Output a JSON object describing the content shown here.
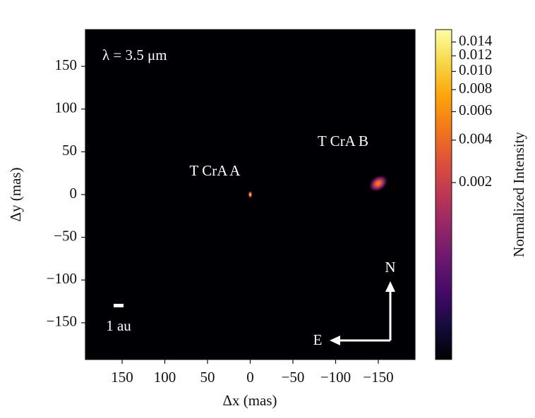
{
  "chart_data": {
    "type": "image",
    "xlabel": "Δx (mas)",
    "ylabel": "Δy (mas)",
    "xlim": [
      193,
      -193
    ],
    "ylim": [
      -193,
      193
    ],
    "xticks": [
      150,
      100,
      50,
      0,
      {
        "value": -50,
        "label": "−50"
      },
      {
        "value": -100,
        "label": "−100"
      },
      {
        "value": -150,
        "label": "−150"
      }
    ],
    "yticks": [
      {
        "value": -150,
        "label": "−150"
      },
      {
        "value": -100,
        "label": "−100"
      },
      {
        "value": -50,
        "label": "−50"
      },
      0,
      50,
      100,
      150
    ],
    "sources": [
      {
        "name": "T CrA A",
        "x": 0,
        "y": 0,
        "peak": 0.014
      },
      {
        "name": "T CrA B",
        "x": -150,
        "y": 13,
        "peak": 0.006
      }
    ],
    "annotations": {
      "wavelength": "λ = 3.5 μm",
      "scale_bar": "1 au",
      "north": "N",
      "east": "E"
    },
    "colorbar": {
      "label": "Normalized Intensity",
      "colormap": "inferno",
      "norm": "power",
      "gamma": 0.25,
      "clim": [
        4e-06,
        0.016
      ],
      "ticks": [
        0.002,
        0.004,
        0.006,
        0.008,
        {
          "value": 0.01,
          "label": "0.010"
        },
        0.012,
        0.014
      ]
    }
  }
}
